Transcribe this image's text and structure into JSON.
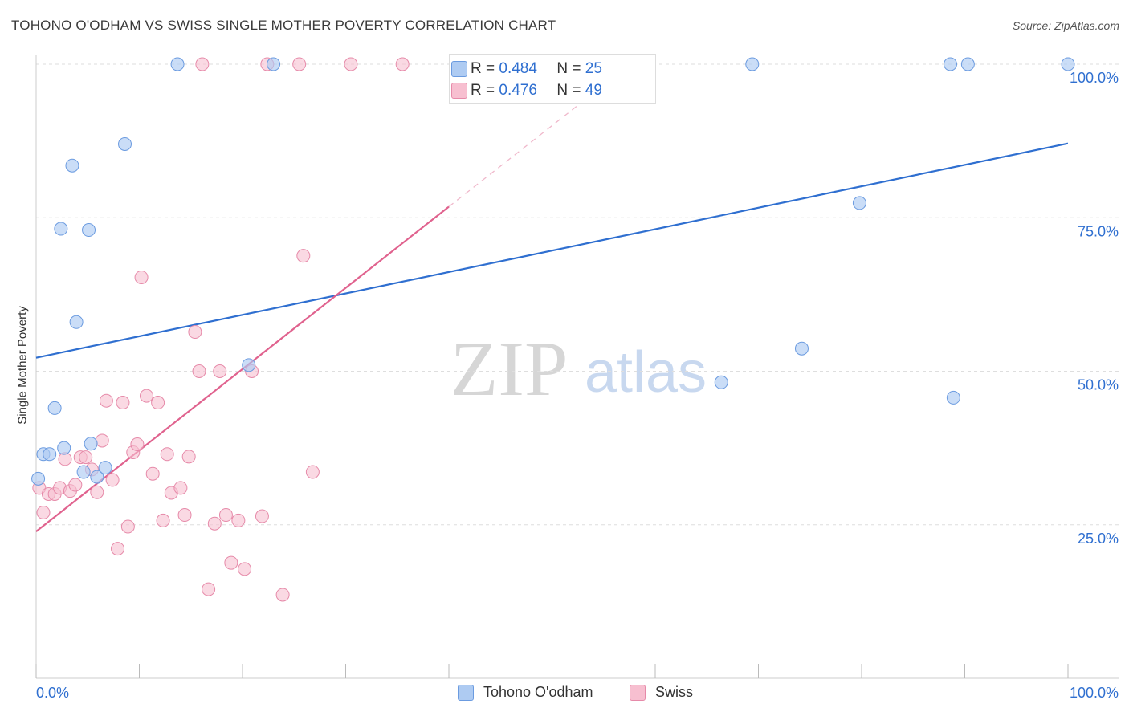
{
  "title": "TOHONO O'ODHAM VS SWISS SINGLE MOTHER POVERTY CORRELATION CHART",
  "source": "Source: ZipAtlas.com",
  "watermark": {
    "zip": "ZIP",
    "atlas": "atlas"
  },
  "colors": {
    "blue_fill": "#aecbf2",
    "blue_stroke": "#6b9be0",
    "blue_line": "#2f6fd0",
    "pink_fill": "#f7bfd0",
    "pink_stroke": "#e68aa9",
    "pink_line": "#e0628e",
    "axis_text": "#2f6fd0",
    "grid": "#dedede"
  },
  "legend_top": {
    "rows": [
      {
        "r_label": "R =",
        "r_value": "0.484",
        "n_label": "N =",
        "n_value": "25"
      },
      {
        "r_label": "R =",
        "r_value": "0.476",
        "n_label": "N =",
        "n_value": "49"
      }
    ]
  },
  "legend_bottom": {
    "items": [
      "Tohono O'odham",
      "Swiss"
    ]
  },
  "chart_data": {
    "type": "scatter",
    "title": "TOHONO O'ODHAM VS SWISS SINGLE MOTHER POVERTY CORRELATION CHART",
    "xlabel": "",
    "ylabel": "Single Mother Poverty",
    "xlim": [
      0,
      100
    ],
    "ylim": [
      0,
      100
    ],
    "x_tick_labels": [
      "0.0%",
      "100.0%"
    ],
    "y_ticks": [
      25,
      50,
      75,
      100
    ],
    "y_tick_labels": [
      "25.0%",
      "50.0%",
      "75.0%",
      "100.0%"
    ],
    "grid": true,
    "series": [
      {
        "name": "Tohono O'odham",
        "R": 0.484,
        "N": 25,
        "trend": {
          "x0": 0,
          "y0": 52.2,
          "x1": 100,
          "y1": 87.1
        },
        "points": [
          {
            "x": 0.2,
            "y": 32.5
          },
          {
            "x": 0.7,
            "y": 36.5
          },
          {
            "x": 1.3,
            "y": 36.5
          },
          {
            "x": 1.8,
            "y": 44.0
          },
          {
            "x": 2.4,
            "y": 73.2
          },
          {
            "x": 2.7,
            "y": 37.5
          },
          {
            "x": 3.5,
            "y": 83.5
          },
          {
            "x": 3.9,
            "y": 58.0
          },
          {
            "x": 4.6,
            "y": 33.6
          },
          {
            "x": 5.1,
            "y": 73.0
          },
          {
            "x": 5.3,
            "y": 38.2
          },
          {
            "x": 5.9,
            "y": 32.8
          },
          {
            "x": 6.7,
            "y": 34.3
          },
          {
            "x": 8.6,
            "y": 87.0
          },
          {
            "x": 13.7,
            "y": 100.0
          },
          {
            "x": 20.6,
            "y": 51.0
          },
          {
            "x": 23.0,
            "y": 100.0
          },
          {
            "x": 66.4,
            "y": 48.2
          },
          {
            "x": 69.4,
            "y": 100.0
          },
          {
            "x": 74.2,
            "y": 53.7
          },
          {
            "x": 79.8,
            "y": 77.4
          },
          {
            "x": 88.6,
            "y": 100.0
          },
          {
            "x": 88.9,
            "y": 45.7
          },
          {
            "x": 90.3,
            "y": 100.0
          },
          {
            "x": 100.0,
            "y": 100.0
          }
        ]
      },
      {
        "name": "Swiss",
        "R": 0.476,
        "N": 49,
        "trend": {
          "x0": 0,
          "y0": 23.9,
          "x1": 40,
          "y1": 76.8,
          "ext_x1": 55,
          "ext_y1": 96.6
        },
        "points": [
          {
            "x": 0.3,
            "y": 31.0
          },
          {
            "x": 0.7,
            "y": 27.0
          },
          {
            "x": 1.2,
            "y": 30.0
          },
          {
            "x": 1.8,
            "y": 30.0
          },
          {
            "x": 2.3,
            "y": 31.0
          },
          {
            "x": 2.8,
            "y": 35.7
          },
          {
            "x": 3.3,
            "y": 30.5
          },
          {
            "x": 3.8,
            "y": 31.5
          },
          {
            "x": 4.3,
            "y": 36.0
          },
          {
            "x": 4.8,
            "y": 36.0
          },
          {
            "x": 5.4,
            "y": 34.0
          },
          {
            "x": 5.9,
            "y": 30.3
          },
          {
            "x": 6.4,
            "y": 38.7
          },
          {
            "x": 6.8,
            "y": 45.2
          },
          {
            "x": 7.4,
            "y": 32.3
          },
          {
            "x": 7.9,
            "y": 21.1
          },
          {
            "x": 8.4,
            "y": 44.9
          },
          {
            "x": 8.9,
            "y": 24.7
          },
          {
            "x": 9.4,
            "y": 36.8
          },
          {
            "x": 9.8,
            "y": 38.1
          },
          {
            "x": 10.2,
            "y": 65.3
          },
          {
            "x": 10.7,
            "y": 46.0
          },
          {
            "x": 11.3,
            "y": 33.3
          },
          {
            "x": 11.8,
            "y": 44.9
          },
          {
            "x": 12.3,
            "y": 25.7
          },
          {
            "x": 12.7,
            "y": 36.5
          },
          {
            "x": 13.1,
            "y": 30.2
          },
          {
            "x": 14.0,
            "y": 31.0
          },
          {
            "x": 14.4,
            "y": 26.6
          },
          {
            "x": 14.8,
            "y": 36.1
          },
          {
            "x": 15.4,
            "y": 56.4
          },
          {
            "x": 15.8,
            "y": 50.0
          },
          {
            "x": 16.1,
            "y": 100.0
          },
          {
            "x": 16.7,
            "y": 14.5
          },
          {
            "x": 17.3,
            "y": 25.2
          },
          {
            "x": 17.8,
            "y": 50.0
          },
          {
            "x": 18.4,
            "y": 26.6
          },
          {
            "x": 18.9,
            "y": 18.8
          },
          {
            "x": 19.6,
            "y": 25.7
          },
          {
            "x": 20.2,
            "y": 17.8
          },
          {
            "x": 20.9,
            "y": 50.0
          },
          {
            "x": 21.9,
            "y": 26.4
          },
          {
            "x": 22.4,
            "y": 100.0
          },
          {
            "x": 23.9,
            "y": 13.6
          },
          {
            "x": 25.5,
            "y": 100.0
          },
          {
            "x": 25.9,
            "y": 68.8
          },
          {
            "x": 26.8,
            "y": 33.6
          },
          {
            "x": 30.5,
            "y": 100.0
          },
          {
            "x": 35.5,
            "y": 100.0
          }
        ]
      }
    ]
  }
}
